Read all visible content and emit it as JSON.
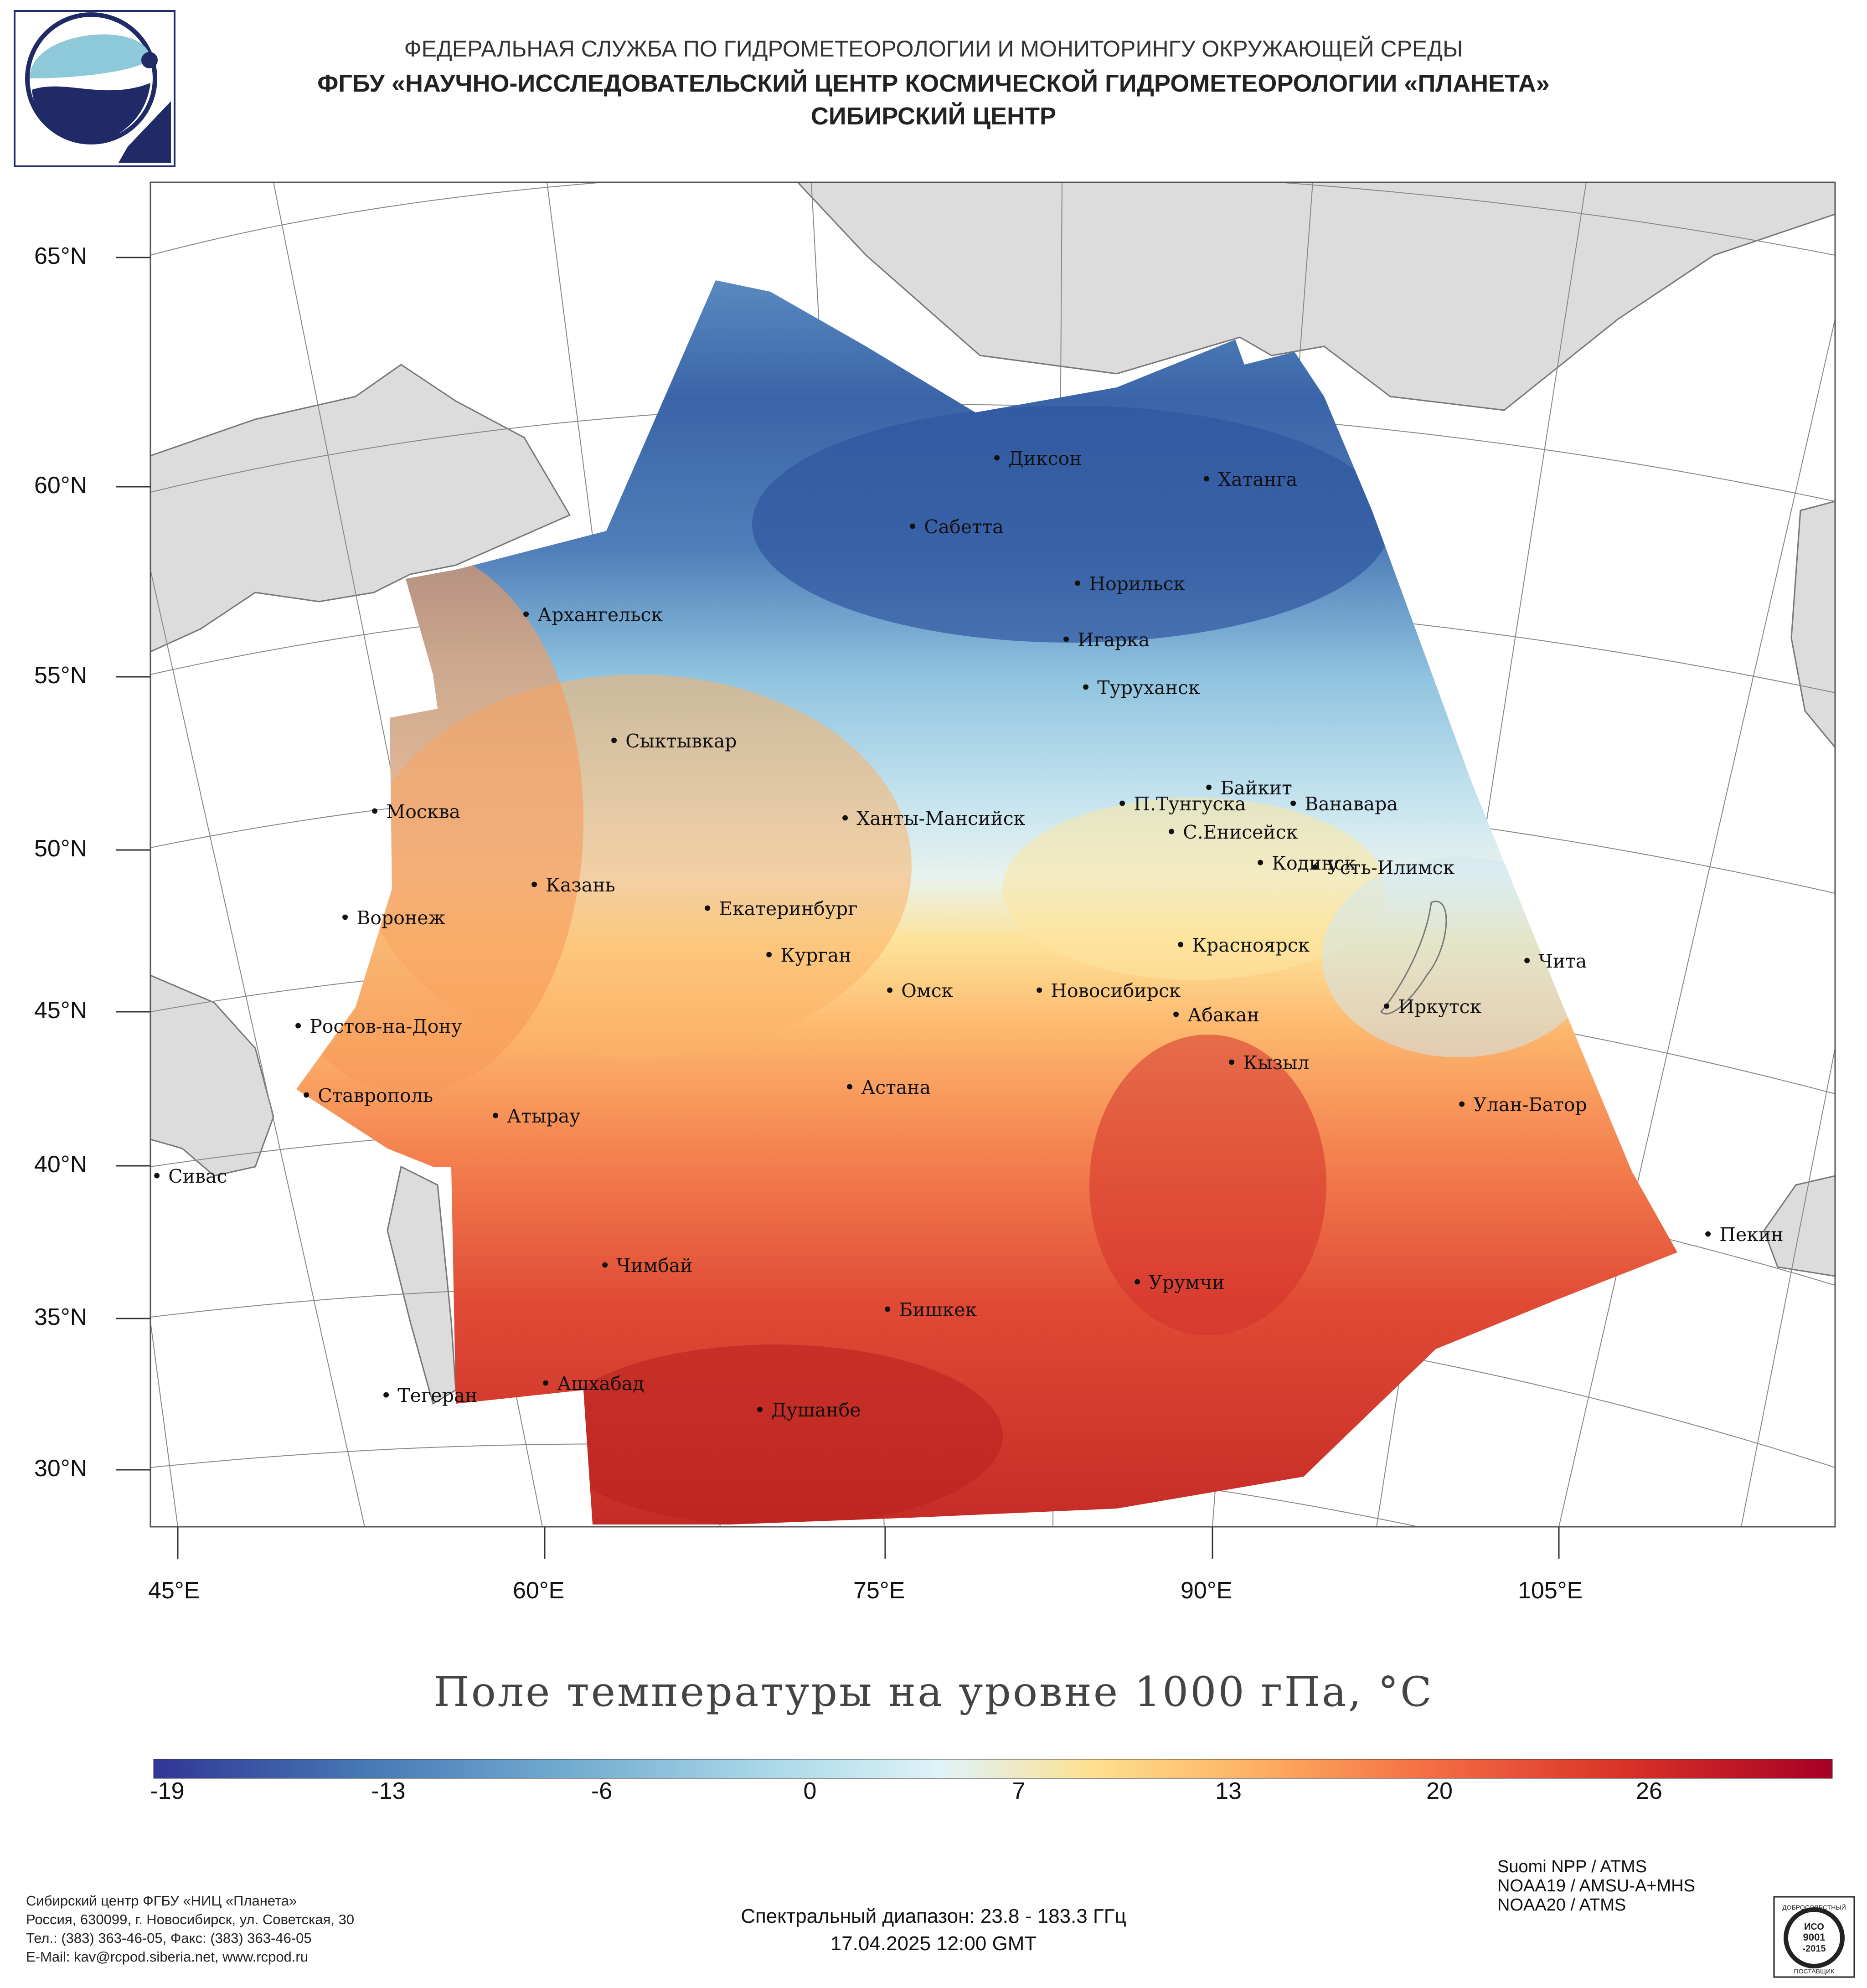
{
  "header": {
    "line1": "ФЕДЕРАЛЬНАЯ СЛУЖБА ПО ГИДРОМЕТЕОРОЛОГИИ И МОНИТОРИНГУ ОКРУЖАЮЩЕЙ СРЕДЫ",
    "line2": "ФГБУ «НАУЧНО-ИССЛЕДОВАТЕЛЬСКИЙ ЦЕНТР КОСМИЧЕСКОЙ ГИДРОМЕТЕОРОЛОГИИ «ПЛАНЕТА»",
    "line3": "СИБИРСКИЙ ЦЕНТР"
  },
  "map": {
    "lat_labels": [
      "65°N",
      "60°N",
      "55°N",
      "50°N",
      "45°N",
      "40°N",
      "35°N",
      "30°N"
    ],
    "lon_labels": [
      "45°E",
      "60°E",
      "75°E",
      "90°E",
      "105°E"
    ],
    "cities": [
      {
        "name": "Диксон"
      },
      {
        "name": "Хатанга"
      },
      {
        "name": "Сабетта"
      },
      {
        "name": "Норильск"
      },
      {
        "name": "Архангельск"
      },
      {
        "name": "Игарка"
      },
      {
        "name": "Туруханск"
      },
      {
        "name": "Сыктывкар"
      },
      {
        "name": "Байкит"
      },
      {
        "name": "Москва"
      },
      {
        "name": "П.Тунгуска"
      },
      {
        "name": "Ванавара"
      },
      {
        "name": "Ханты-Мансийск"
      },
      {
        "name": "С.Енисейск"
      },
      {
        "name": "Кодинск"
      },
      {
        "name": "Усть-Илимск"
      },
      {
        "name": "Казань"
      },
      {
        "name": "Екатеринбург"
      },
      {
        "name": "Воронеж"
      },
      {
        "name": "Красноярск"
      },
      {
        "name": "Курган"
      },
      {
        "name": "Чита"
      },
      {
        "name": "Омск"
      },
      {
        "name": "Новосибирск"
      },
      {
        "name": "Иркутск"
      },
      {
        "name": "Ростов-на-Дону"
      },
      {
        "name": "Абакан"
      },
      {
        "name": "Кызыл"
      },
      {
        "name": "Ставрополь"
      },
      {
        "name": "Астана"
      },
      {
        "name": "Улан-Батор"
      },
      {
        "name": "Атырау"
      },
      {
        "name": "Сивас"
      },
      {
        "name": "Пекин"
      },
      {
        "name": "Чимбай"
      },
      {
        "name": "Урумчи"
      },
      {
        "name": "Бишкек"
      },
      {
        "name": "Ашхабад"
      },
      {
        "name": "Тегеран"
      },
      {
        "name": "Душанбе"
      }
    ]
  },
  "title": "Поле температуры на уровне 1000 гПа, °C",
  "colorbar": {
    "ticks": [
      "-19",
      "-13",
      "-6",
      "0",
      "7",
      "13",
      "20",
      "26"
    ],
    "tick_values": [
      -19,
      -13,
      -6,
      0,
      7,
      13,
      20,
      26
    ],
    "min": -20.5,
    "max": 30.5,
    "colors": [
      "#313695",
      "#4575b4",
      "#74add1",
      "#abd9e9",
      "#e0f3f8",
      "#fee090",
      "#fdae61",
      "#f46d43",
      "#d73027",
      "#a50026"
    ]
  },
  "footer": {
    "org_line1": "Сибирский центр ФГБУ «НИЦ «Планета»",
    "org_line2": "Россия, 630099, г. Новосибирск, ул. Советская, 30",
    "org_line3": "Тел.: (383) 363-46-05, Факс: (383) 363-46-05",
    "org_line4": "E-Mail: kav@rcpod.siberia.net, www.rcpod.ru",
    "spectral": "Спектральный диапазон: 23.8 - 183.3 ГГц",
    "datetime": "17.04.2025 12:00 GMT",
    "satellites": [
      "Suomi NPP / ATMS",
      "NOAA19 / AMSU-A+MHS",
      "NOAA20 / ATMS"
    ],
    "badge": {
      "line1": "ДОБРОСОВЕСТНЫЙ",
      "line2": "ИСО",
      "line3": "9001",
      "line4": "-2015",
      "line5": "ПОСТАВЩИК"
    }
  }
}
